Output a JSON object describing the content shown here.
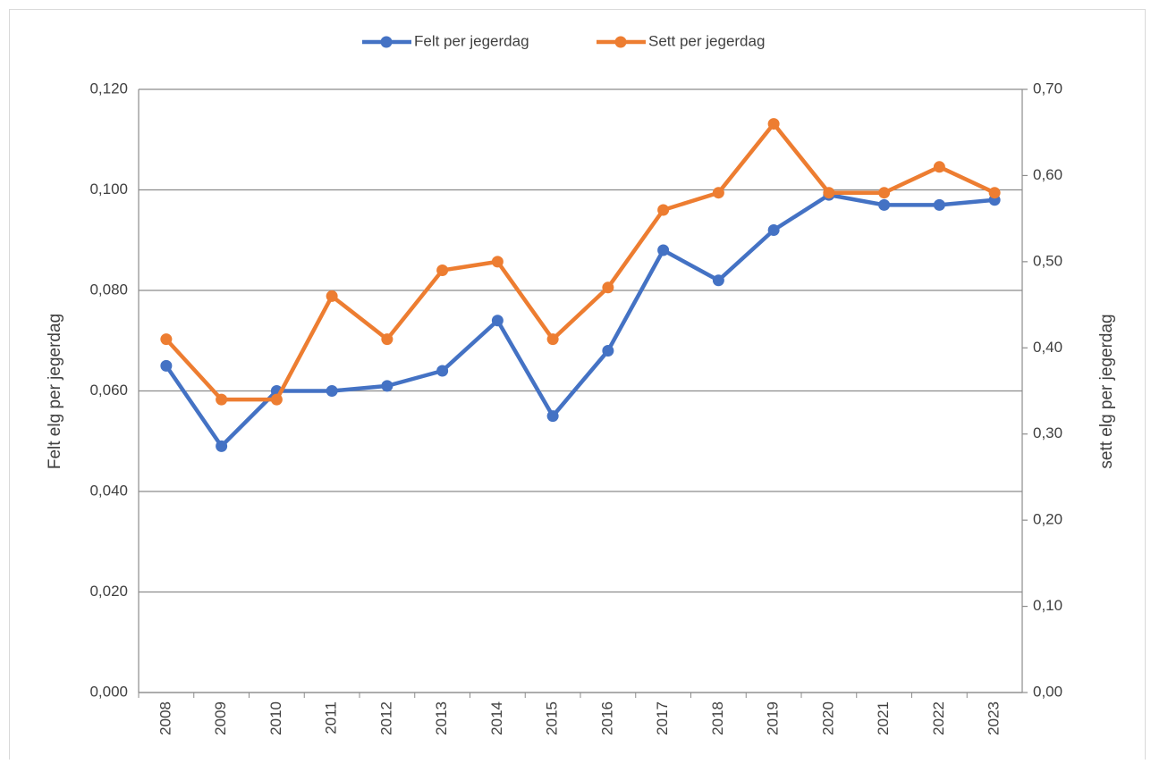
{
  "chart_data": {
    "type": "line",
    "categories": [
      "2008",
      "2009",
      "2010",
      "2011",
      "2012",
      "2013",
      "2014",
      "2015",
      "2016",
      "2017",
      "2018",
      "2019",
      "2020",
      "2021",
      "2022",
      "2023"
    ],
    "series": [
      {
        "name": "Felt per jegerdag",
        "color": "#4472c4",
        "values": [
          0.065,
          0.049,
          0.06,
          0.06,
          0.061,
          0.064,
          0.074,
          0.055,
          0.068,
          0.088,
          0.082,
          0.092,
          0.099,
          0.097,
          0.097,
          0.098
        ]
      },
      {
        "name": "Sett per jegerdag",
        "color": "#ed7d31",
        "axis": "y2",
        "values": [
          0.41,
          0.34,
          0.34,
          0.46,
          0.41,
          0.49,
          0.5,
          0.41,
          0.47,
          0.56,
          0.58,
          0.66,
          0.58,
          0.58,
          0.61,
          0.58
        ]
      }
    ],
    "ylabel": "Felt elg per jegerdag",
    "y2label": "sett elg per jegerdag",
    "ylim": [
      0,
      0.12
    ],
    "yticks": [
      {
        "value": 0,
        "label": "0,000"
      },
      {
        "value": 0.02,
        "label": "0,020"
      },
      {
        "value": 0.04,
        "label": "0,040"
      },
      {
        "value": 0.06,
        "label": "0,060"
      },
      {
        "value": 0.08,
        "label": "0,080"
      },
      {
        "value": 0.1,
        "label": "0,100"
      },
      {
        "value": 0.12,
        "label": "0,120"
      }
    ],
    "y2lim": [
      0,
      0.7
    ],
    "y2ticks": [
      {
        "value": 0,
        "label": "0,00"
      },
      {
        "value": 0.1,
        "label": "0,10"
      },
      {
        "value": 0.2,
        "label": "0,20"
      },
      {
        "value": 0.3,
        "label": "0,30"
      },
      {
        "value": 0.4,
        "label": "0,40"
      },
      {
        "value": 0.5,
        "label": "0,50"
      },
      {
        "value": 0.6,
        "label": "0,60"
      },
      {
        "value": 0.7,
        "label": "0,70"
      }
    ],
    "grid": true,
    "legend": "top"
  }
}
